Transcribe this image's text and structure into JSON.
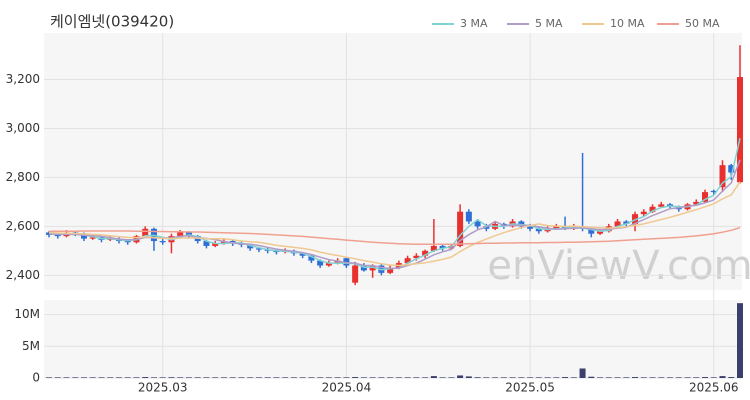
{
  "chart_data": {
    "type": "candlestick",
    "title": "케이엠넷(039420)",
    "watermark": "enViewV.com",
    "categories": [
      null,
      null,
      null,
      null,
      null,
      null,
      null,
      null,
      null,
      null,
      null,
      null,
      null,
      "2025.03",
      null,
      null,
      null,
      null,
      null,
      null,
      null,
      null,
      null,
      null,
      null,
      null,
      null,
      null,
      null,
      null,
      null,
      null,
      null,
      null,
      "2025.04",
      null,
      null,
      null,
      null,
      null,
      null,
      null,
      null,
      null,
      null,
      null,
      null,
      null,
      null,
      null,
      null,
      null,
      null,
      null,
      null,
      "2025.05",
      null,
      null,
      null,
      null,
      null,
      null,
      null,
      null,
      null,
      null,
      null,
      null,
      null,
      null,
      null,
      null,
      null,
      null,
      null,
      null,
      "2025.06",
      null,
      null,
      null
    ],
    "ohlc": [
      [
        2575,
        2580,
        2555,
        2565
      ],
      [
        2565,
        2575,
        2550,
        2560
      ],
      [
        2560,
        2585,
        2555,
        2575
      ],
      [
        2575,
        2580,
        2560,
        2570
      ],
      [
        2570,
        2575,
        2540,
        2550
      ],
      [
        2550,
        2565,
        2545,
        2555
      ],
      [
        2555,
        2560,
        2535,
        2545
      ],
      [
        2545,
        2560,
        2540,
        2550
      ],
      [
        2550,
        2555,
        2530,
        2540
      ],
      [
        2540,
        2545,
        2525,
        2535
      ],
      [
        2535,
        2565,
        2530,
        2560
      ],
      [
        2560,
        2600,
        2555,
        2590
      ],
      [
        2590,
        2595,
        2500,
        2540
      ],
      [
        2540,
        2550,
        2525,
        2535
      ],
      [
        2535,
        2570,
        2490,
        2560
      ],
      [
        2560,
        2585,
        2555,
        2575
      ],
      [
        2575,
        2580,
        2550,
        2560
      ],
      [
        2560,
        2565,
        2530,
        2540
      ],
      [
        2540,
        2545,
        2510,
        2520
      ],
      [
        2520,
        2540,
        2515,
        2530
      ],
      [
        2530,
        2550,
        2525,
        2540
      ],
      [
        2540,
        2545,
        2520,
        2530
      ],
      [
        2530,
        2540,
        2515,
        2525
      ],
      [
        2525,
        2530,
        2500,
        2510
      ],
      [
        2510,
        2515,
        2495,
        2505
      ],
      [
        2505,
        2515,
        2490,
        2500
      ],
      [
        2500,
        2505,
        2485,
        2495
      ],
      [
        2495,
        2510,
        2490,
        2500
      ],
      [
        2500,
        2505,
        2480,
        2490
      ],
      [
        2490,
        2495,
        2470,
        2480
      ],
      [
        2480,
        2485,
        2450,
        2460
      ],
      [
        2460,
        2465,
        2430,
        2440
      ],
      [
        2440,
        2460,
        2435,
        2450
      ],
      [
        2450,
        2470,
        2445,
        2460
      ],
      [
        2470,
        2475,
        2430,
        2440
      ],
      [
        2370,
        2455,
        2360,
        2440
      ],
      [
        2440,
        2450,
        2415,
        2420
      ],
      [
        2420,
        2445,
        2390,
        2440
      ],
      [
        2440,
        2445,
        2400,
        2410
      ],
      [
        2410,
        2440,
        2405,
        2430
      ],
      [
        2430,
        2460,
        2425,
        2450
      ],
      [
        2450,
        2480,
        2440,
        2470
      ],
      [
        2470,
        2490,
        2460,
        2480
      ],
      [
        2480,
        2505,
        2470,
        2500
      ],
      [
        2500,
        2630,
        2495,
        2520
      ],
      [
        2520,
        2530,
        2500,
        2510
      ],
      [
        2510,
        2530,
        2505,
        2520
      ],
      [
        2520,
        2690,
        2515,
        2660
      ],
      [
        2660,
        2670,
        2610,
        2620
      ],
      [
        2620,
        2630,
        2590,
        2600
      ],
      [
        2600,
        2610,
        2580,
        2590
      ],
      [
        2590,
        2620,
        2585,
        2610
      ],
      [
        2610,
        2615,
        2590,
        2600
      ],
      [
        2600,
        2630,
        2595,
        2620
      ],
      [
        2620,
        2625,
        2590,
        2600
      ],
      [
        2600,
        2610,
        2580,
        2590
      ],
      [
        2590,
        2600,
        2570,
        2580
      ],
      [
        2580,
        2600,
        2575,
        2590
      ],
      [
        2590,
        2610,
        2585,
        2600
      ],
      [
        2600,
        2640,
        2585,
        2590
      ],
      [
        2590,
        2610,
        2585,
        2600
      ],
      [
        2600,
        2900,
        2580,
        2590
      ],
      [
        2590,
        2595,
        2555,
        2570
      ],
      [
        2570,
        2590,
        2565,
        2580
      ],
      [
        2580,
        2610,
        2575,
        2600
      ],
      [
        2600,
        2630,
        2595,
        2620
      ],
      [
        2620,
        2625,
        2600,
        2610
      ],
      [
        2610,
        2660,
        2580,
        2650
      ],
      [
        2650,
        2670,
        2640,
        2660
      ],
      [
        2660,
        2690,
        2655,
        2680
      ],
      [
        2680,
        2700,
        2675,
        2690
      ],
      [
        2690,
        2695,
        2670,
        2680
      ],
      [
        2680,
        2685,
        2660,
        2670
      ],
      [
        2670,
        2695,
        2665,
        2690
      ],
      [
        2690,
        2710,
        2685,
        2700
      ],
      [
        2700,
        2750,
        2695,
        2740
      ],
      [
        2745,
        2750,
        2730,
        2740
      ],
      [
        2760,
        2870,
        2740,
        2850
      ],
      [
        2850,
        2855,
        2790,
        2820
      ],
      [
        2780,
        3340,
        2775,
        3210
      ]
    ],
    "up_color": "#e8312f",
    "down_color": "#2f6fd6",
    "series": [
      {
        "name": "3 MA",
        "color": "#7fd3d3",
        "values": [
          2570,
          2567,
          2567,
          2568,
          2565,
          2558,
          2550,
          2550,
          2545,
          2542,
          2545,
          2562,
          2563,
          2555,
          2545,
          2557,
          2565,
          2558,
          2540,
          2530,
          2530,
          2533,
          2532,
          2522,
          2513,
          2505,
          2500,
          2498,
          2495,
          2490,
          2477,
          2460,
          2450,
          2450,
          2450,
          2447,
          2433,
          2433,
          2423,
          2427,
          2430,
          2450,
          2467,
          2483,
          2500,
          2510,
          2517,
          2563,
          2600,
          2627,
          2603,
          2600,
          2600,
          2610,
          2607,
          2603,
          2590,
          2587,
          2590,
          2593,
          2597,
          2593,
          2587,
          2580,
          2583,
          2600,
          2610,
          2627,
          2640,
          2663,
          2677,
          2683,
          2680,
          2680,
          2687,
          2710,
          2727,
          2777,
          2803,
          2960
        ]
      },
      {
        "name": "5 MA",
        "color": "#b09cc8",
        "values": [
          2570,
          2568,
          2567,
          2567,
          2564,
          2562,
          2559,
          2554,
          2548,
          2545,
          2546,
          2555,
          2553,
          2552,
          2553,
          2560,
          2562,
          2554,
          2551,
          2545,
          2538,
          2532,
          2529,
          2527,
          2522,
          2514,
          2507,
          2502,
          2498,
          2493,
          2485,
          2474,
          2464,
          2458,
          2452,
          2450,
          2440,
          2440,
          2432,
          2428,
          2430,
          2440,
          2450,
          2466,
          2484,
          2496,
          2506,
          2542,
          2566,
          2586,
          2598,
          2620,
          2604,
          2604,
          2604,
          2604,
          2598,
          2592,
          2588,
          2590,
          2592,
          2594,
          2590,
          2586,
          2588,
          2592,
          2596,
          2612,
          2628,
          2644,
          2658,
          2672,
          2676,
          2682,
          2686,
          2696,
          2708,
          2744,
          2778,
          2872
        ]
      },
      {
        "name": "10 MA",
        "color": "#f0c890",
        "values": [
          2575,
          2573,
          2572,
          2571,
          2569,
          2567,
          2565,
          2562,
          2558,
          2555,
          2554,
          2557,
          2554,
          2551,
          2550,
          2552,
          2553,
          2552,
          2550,
          2549,
          2549,
          2545,
          2540,
          2537,
          2535,
          2529,
          2523,
          2518,
          2514,
          2510,
          2504,
          2495,
          2487,
          2481,
          2474,
          2468,
          2460,
          2454,
          2447,
          2442,
          2440,
          2443,
          2447,
          2451,
          2458,
          2465,
          2475,
          2497,
          2517,
          2534,
          2548,
          2562,
          2574,
          2585,
          2595,
          2603,
          2610,
          2603,
          2601,
          2600,
          2601,
          2599,
          2596,
          2594,
          2593,
          2595,
          2598,
          2604,
          2610,
          2619,
          2628,
          2637,
          2647,
          2658,
          2668,
          2680,
          2692,
          2712,
          2729,
          2782
        ]
      },
      {
        "name": "50 MA",
        "color": "#f0a090",
        "values": [
          2580,
          2580,
          2580,
          2580,
          2581,
          2581,
          2581,
          2581,
          2581,
          2581,
          2580,
          2580,
          2579,
          2579,
          2578,
          2578,
          2577,
          2577,
          2576,
          2575,
          2574,
          2573,
          2572,
          2571,
          2569,
          2567,
          2565,
          2563,
          2561,
          2559,
          2556,
          2553,
          2550,
          2547,
          2544,
          2541,
          2538,
          2535,
          2533,
          2531,
          2529,
          2528,
          2527,
          2527,
          2527,
          2527,
          2527,
          2528,
          2529,
          2530,
          2531,
          2531,
          2532,
          2532,
          2533,
          2533,
          2533,
          2534,
          2534,
          2535,
          2535,
          2536,
          2537,
          2538,
          2539,
          2541,
          2543,
          2545,
          2547,
          2549,
          2551,
          2553,
          2555,
          2558,
          2561,
          2565,
          2570,
          2576,
          2584,
          2595
        ]
      }
    ],
    "ylim": [
      2340,
      3390
    ],
    "yticks": [
      {
        "value": 2400,
        "label": "2,400"
      },
      {
        "value": 2600,
        "label": "2,600"
      },
      {
        "value": 2800,
        "label": "2,800"
      },
      {
        "value": 3000,
        "label": "3,000"
      },
      {
        "value": 3200,
        "label": "3,200"
      }
    ],
    "volume": [
      100000,
      100000,
      100000,
      100000,
      100000,
      100000,
      100000,
      100000,
      100000,
      100000,
      100000,
      150000,
      100000,
      100000,
      120000,
      100000,
      100000,
      100000,
      100000,
      100000,
      100000,
      100000,
      100000,
      100000,
      100000,
      100000,
      100000,
      100000,
      100000,
      100000,
      100000,
      100000,
      100000,
      100000,
      100000,
      150000,
      100000,
      100000,
      100000,
      100000,
      100000,
      100000,
      100000,
      100000,
      300000,
      100000,
      100000,
      400000,
      250000,
      120000,
      100000,
      100000,
      100000,
      100000,
      100000,
      100000,
      100000,
      100000,
      100000,
      150000,
      100000,
      1500000,
      200000,
      100000,
      100000,
      100000,
      100000,
      150000,
      100000,
      100000,
      100000,
      100000,
      100000,
      100000,
      100000,
      150000,
      100000,
      300000,
      150000,
      11800000
    ],
    "volume_color": "#3a3f6b",
    "volume_ylim": [
      0,
      12300000
    ],
    "volume_yticks": [
      0,
      {
        "value": 5000000,
        "label": "5M"
      },
      {
        "value": 10000000,
        "label": "10M"
      }
    ],
    "grid": true
  }
}
